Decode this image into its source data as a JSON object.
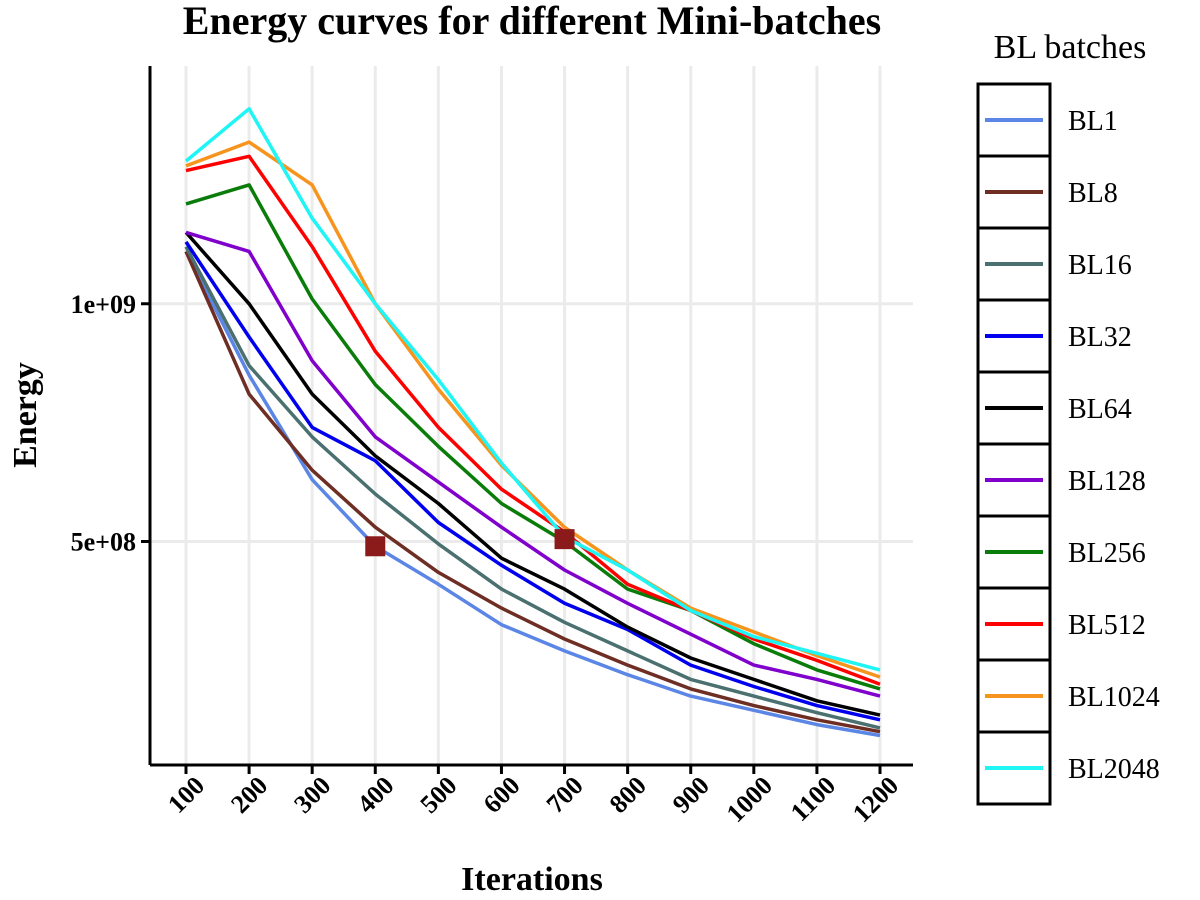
{
  "chart_data": {
    "type": "line",
    "title": "Energy curves for different Mini-batches",
    "xlabel": "Iterations",
    "ylabel": "Energy",
    "x": [
      100,
      200,
      300,
      400,
      500,
      600,
      700,
      800,
      900,
      1000,
      1100,
      1200
    ],
    "x_tick_labels": [
      "100",
      "200",
      "300",
      "400",
      "500",
      "600",
      "700",
      "800",
      "900",
      "1000",
      "1100",
      "1200"
    ],
    "y_ticks": [
      500000000,
      1000000000
    ],
    "y_tick_labels": [
      "5e+08",
      "1e+09"
    ],
    "ylim": [
      30000000,
      1500000000
    ],
    "grid": true,
    "legend_title": "BL batches",
    "legend_position": "right",
    "series": [
      {
        "name": "BL1",
        "color": "#5b86e5",
        "values": [
          1110000000,
          850000000,
          630000000,
          490000000,
          410000000,
          325000000,
          270000000,
          220000000,
          175000000,
          145000000,
          115000000,
          92000000
        ]
      },
      {
        "name": "BL8",
        "color": "#6e2e24",
        "values": [
          1110000000,
          810000000,
          650000000,
          530000000,
          435000000,
          360000000,
          295000000,
          240000000,
          190000000,
          155000000,
          125000000,
          100000000
        ]
      },
      {
        "name": "BL16",
        "color": "#4b7070",
        "values": [
          1120000000,
          870000000,
          720000000,
          600000000,
          495000000,
          400000000,
          330000000,
          270000000,
          210000000,
          175000000,
          140000000,
          108000000
        ]
      },
      {
        "name": "BL32",
        "color": "#0000ee",
        "values": [
          1130000000,
          930000000,
          740000000,
          670000000,
          540000000,
          450000000,
          370000000,
          315000000,
          240000000,
          195000000,
          155000000,
          125000000
        ]
      },
      {
        "name": "BL64",
        "color": "#000000",
        "values": [
          1150000000,
          1000000000,
          810000000,
          680000000,
          580000000,
          465000000,
          400000000,
          320000000,
          255000000,
          210000000,
          165000000,
          135000000
        ]
      },
      {
        "name": "BL128",
        "color": "#8000cc",
        "values": [
          1150000000,
          1110000000,
          880000000,
          720000000,
          625000000,
          530000000,
          440000000,
          370000000,
          305000000,
          240000000,
          210000000,
          175000000
        ]
      },
      {
        "name": "BL256",
        "color": "#0a7c0a",
        "values": [
          1210000000,
          1250000000,
          1010000000,
          830000000,
          700000000,
          580000000,
          500000000,
          400000000,
          355000000,
          285000000,
          230000000,
          190000000
        ]
      },
      {
        "name": "BL512",
        "color": "#ff0000",
        "values": [
          1280000000,
          1310000000,
          1120000000,
          900000000,
          740000000,
          610000000,
          520000000,
          410000000,
          355000000,
          295000000,
          250000000,
          200000000
        ]
      },
      {
        "name": "BL1024",
        "color": "#f7941d",
        "values": [
          1290000000,
          1340000000,
          1250000000,
          1000000000,
          820000000,
          660000000,
          530000000,
          440000000,
          360000000,
          310000000,
          260000000,
          215000000
        ]
      },
      {
        "name": "BL2048",
        "color": "#1ff5f5",
        "values": [
          1300000000,
          1410000000,
          1180000000,
          1000000000,
          840000000,
          665000000,
          510000000,
          440000000,
          355000000,
          300000000,
          265000000,
          230000000
        ]
      }
    ],
    "markers": [
      {
        "x": 400,
        "y": 490000000,
        "shape": "square",
        "color": "#8b1a1a"
      },
      {
        "x": 700,
        "y": 505000000,
        "shape": "square",
        "color": "#8b1a1a"
      }
    ]
  }
}
